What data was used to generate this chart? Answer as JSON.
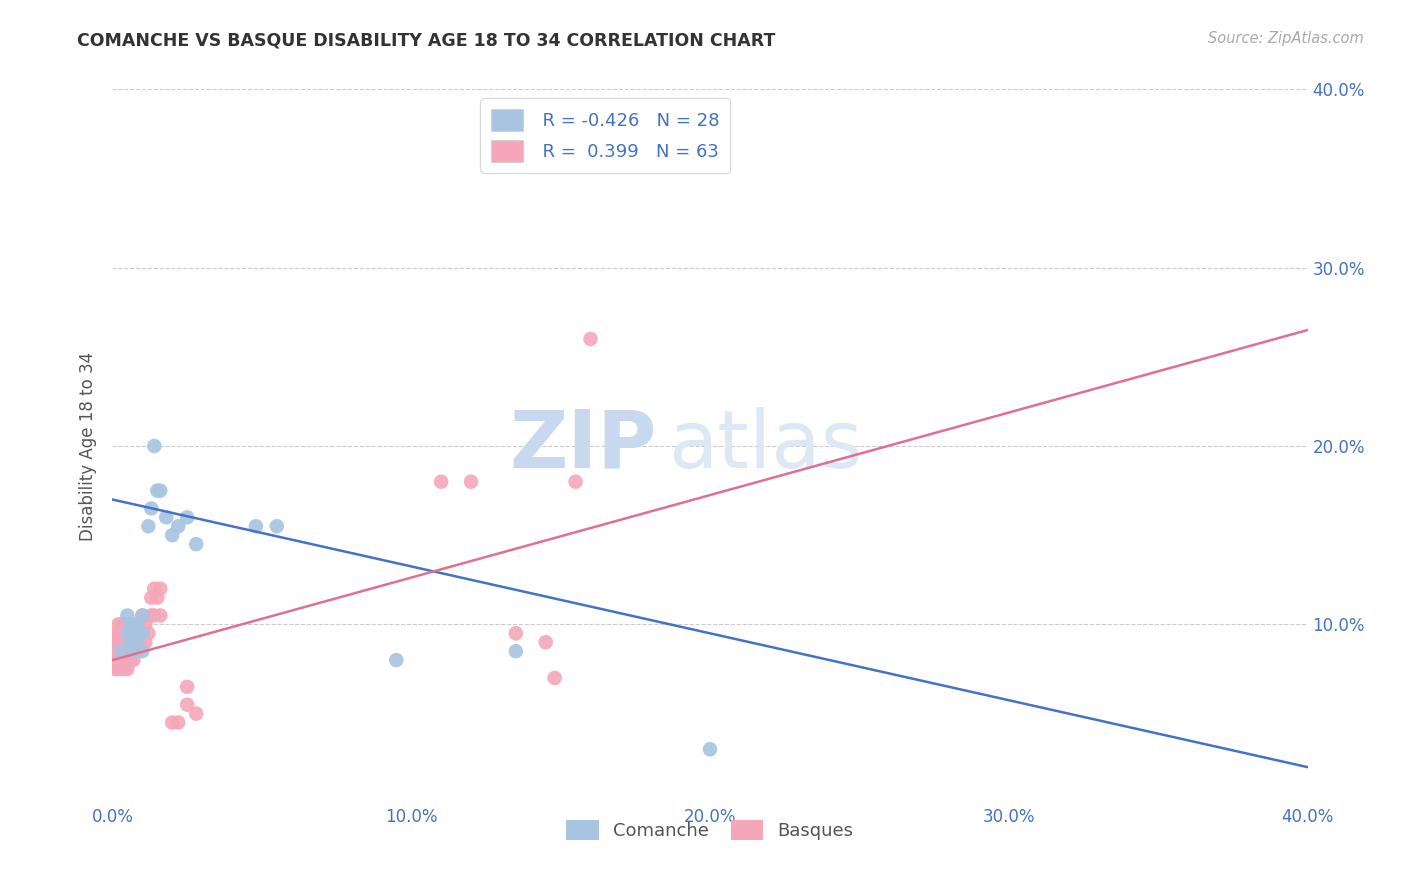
{
  "title": "COMANCHE VS BASQUE DISABILITY AGE 18 TO 34 CORRELATION CHART",
  "source": "Source: ZipAtlas.com",
  "ylabel_label": "Disability Age 18 to 34",
  "xlim": [
    0.0,
    0.4
  ],
  "ylim": [
    0.0,
    0.4
  ],
  "xtick_labels": [
    "0.0%",
    "",
    "10.0%",
    "",
    "20.0%",
    "",
    "30.0%",
    "",
    "40.0%"
  ],
  "xtick_vals": [
    0.0,
    0.05,
    0.1,
    0.15,
    0.2,
    0.25,
    0.3,
    0.35,
    0.4
  ],
  "ytick_vals": [
    0.1,
    0.2,
    0.3,
    0.4
  ],
  "ytick_right_labels": [
    "10.0%",
    "20.0%",
    "30.0%",
    "40.0%"
  ],
  "background_color": "#ffffff",
  "grid_color": "#cccccc",
  "comanche_color": "#a8c4e0",
  "basque_color": "#f4a7b9",
  "comanche_line_color": "#4472c4",
  "basque_line_color": "#e07090",
  "legend_R_comanche": "R = -0.426",
  "legend_N_comanche": "N = 28",
  "legend_R_basque": "R =  0.399",
  "legend_N_basque": "N = 63",
  "watermark_zip": "ZIP",
  "watermark_atlas": "atlas",
  "comanche_x": [
    0.003,
    0.005,
    0.005,
    0.006,
    0.006,
    0.007,
    0.007,
    0.008,
    0.008,
    0.009,
    0.01,
    0.01,
    0.01,
    0.012,
    0.013,
    0.014,
    0.015,
    0.016,
    0.018,
    0.02,
    0.022,
    0.025,
    0.028,
    0.048,
    0.055,
    0.095,
    0.135,
    0.2
  ],
  "comanche_y": [
    0.085,
    0.095,
    0.105,
    0.09,
    0.1,
    0.085,
    0.095,
    0.09,
    0.1,
    0.095,
    0.085,
    0.095,
    0.105,
    0.155,
    0.165,
    0.2,
    0.175,
    0.175,
    0.16,
    0.15,
    0.155,
    0.16,
    0.145,
    0.155,
    0.155,
    0.08,
    0.085,
    0.03
  ],
  "basque_x": [
    0.001,
    0.001,
    0.001,
    0.001,
    0.001,
    0.002,
    0.002,
    0.002,
    0.002,
    0.002,
    0.002,
    0.003,
    0.003,
    0.003,
    0.003,
    0.003,
    0.003,
    0.004,
    0.004,
    0.004,
    0.004,
    0.004,
    0.004,
    0.005,
    0.005,
    0.005,
    0.005,
    0.005,
    0.006,
    0.006,
    0.006,
    0.007,
    0.007,
    0.007,
    0.008,
    0.008,
    0.008,
    0.009,
    0.009,
    0.01,
    0.01,
    0.011,
    0.011,
    0.012,
    0.013,
    0.013,
    0.014,
    0.014,
    0.015,
    0.016,
    0.016,
    0.02,
    0.022,
    0.025,
    0.025,
    0.028,
    0.11,
    0.12,
    0.135,
    0.145,
    0.148,
    0.155,
    0.16
  ],
  "basque_y": [
    0.075,
    0.08,
    0.085,
    0.09,
    0.095,
    0.075,
    0.08,
    0.085,
    0.09,
    0.095,
    0.1,
    0.075,
    0.08,
    0.085,
    0.09,
    0.095,
    0.1,
    0.075,
    0.08,
    0.085,
    0.09,
    0.095,
    0.1,
    0.075,
    0.08,
    0.085,
    0.09,
    0.095,
    0.08,
    0.085,
    0.09,
    0.08,
    0.085,
    0.09,
    0.085,
    0.09,
    0.1,
    0.09,
    0.1,
    0.095,
    0.105,
    0.09,
    0.1,
    0.095,
    0.115,
    0.105,
    0.105,
    0.12,
    0.115,
    0.105,
    0.12,
    0.045,
    0.045,
    0.055,
    0.065,
    0.05,
    0.18,
    0.18,
    0.095,
    0.09,
    0.07,
    0.18,
    0.26
  ],
  "comanche_trendline_x": [
    0.0,
    0.4
  ],
  "comanche_trendline_y": [
    0.17,
    0.02
  ],
  "basque_trendline_x": [
    0.0,
    0.4
  ],
  "basque_trendline_y": [
    0.08,
    0.265
  ]
}
